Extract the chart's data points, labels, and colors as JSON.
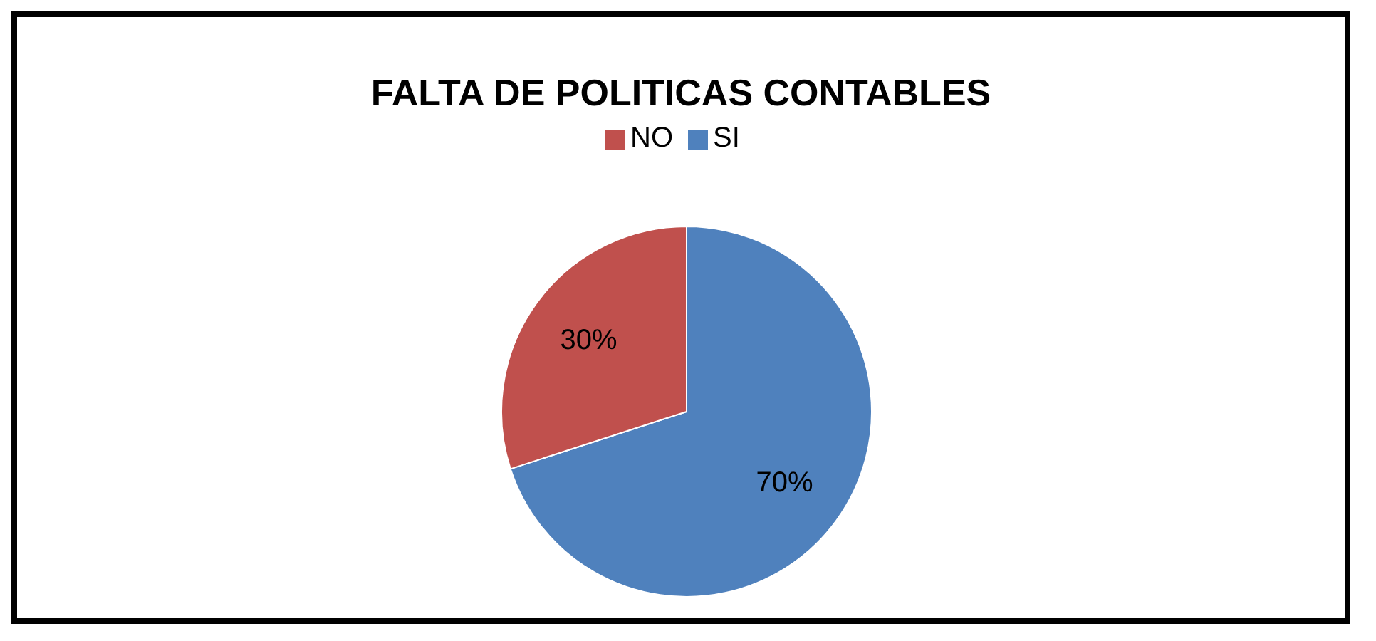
{
  "chart_data": {
    "type": "pie",
    "title": "FALTA DE POLITICAS CONTABLES",
    "categories": [
      "SI",
      "NO"
    ],
    "values": [
      70,
      30
    ],
    "colors": [
      "#4f81bd",
      "#c0504d"
    ],
    "value_labels": [
      "70%",
      "30%"
    ],
    "legend": "top"
  }
}
